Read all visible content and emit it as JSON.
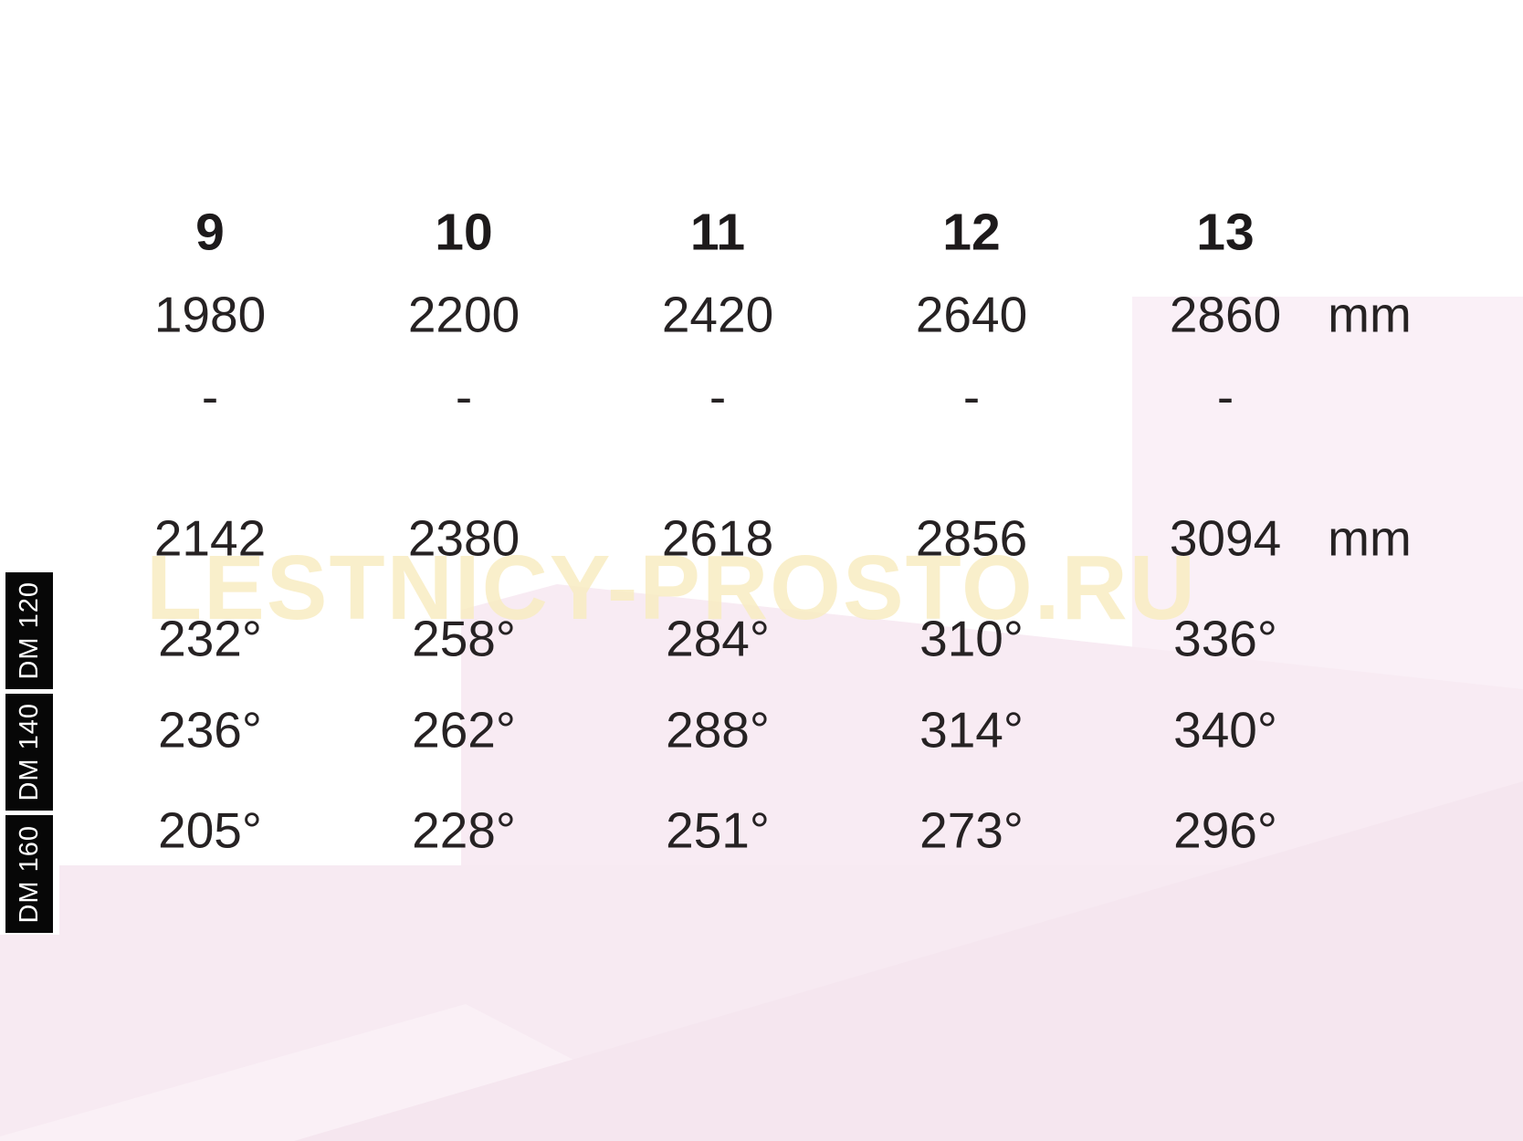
{
  "watermark": {
    "text": "LESTNICY-PROSTO.RU"
  },
  "table": {
    "column_headers": [
      "9",
      "10",
      "11",
      "12",
      "13"
    ],
    "rows": [
      {
        "id": "length-min",
        "values": [
          "1980",
          "2200",
          "2420",
          "2640",
          "2860"
        ],
        "unit": "mm"
      },
      {
        "id": "separator",
        "values": [
          "-",
          "-",
          "-",
          "-",
          "-"
        ],
        "unit": ""
      },
      {
        "id": "length-max",
        "values": [
          "2142",
          "2380",
          "2618",
          "2856",
          "3094"
        ],
        "unit": "mm"
      },
      {
        "id": "dm-120",
        "values": [
          "232°",
          "258°",
          "284°",
          "310°",
          "336°"
        ],
        "unit": ""
      },
      {
        "id": "dm-140",
        "values": [
          "236°",
          "262°",
          "288°",
          "314°",
          "340°"
        ],
        "unit": ""
      },
      {
        "id": "dm-160",
        "values": [
          "205°",
          "228°",
          "251°",
          "273°",
          "296°"
        ],
        "unit": ""
      }
    ],
    "side_labels": [
      "DM 120",
      "DM 140",
      "DM 160"
    ]
  },
  "colors": {
    "background": "#ffffff",
    "accent_pink_light": "#faf0f7",
    "accent_pink_mid": "#f8ebf3",
    "accent_pink_band": "#f7eaf2",
    "watermark_cream": "#f9edc2",
    "side_label_bg": "#070707",
    "side_label_text": "#ffffff",
    "text": "#262223"
  }
}
